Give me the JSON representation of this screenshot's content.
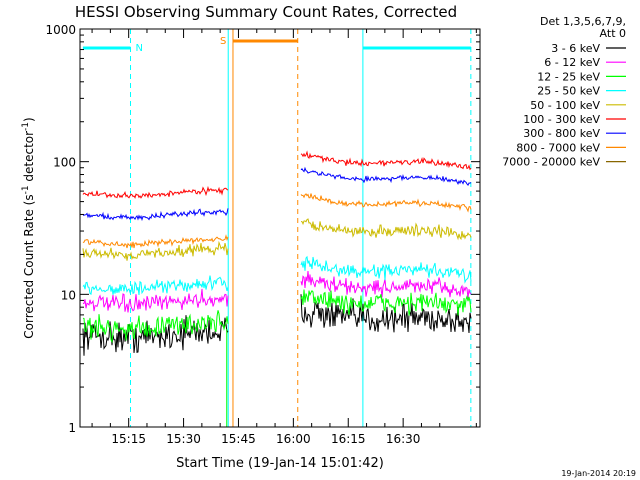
{
  "chart_data": {
    "type": "line",
    "title": "HESSI Observing Summary Count Rates, Corrected",
    "xlabel": "Start Time (19-Jan-14 15:01:42)",
    "ylabel": "Corrected Count Rate (s⁻¹ detector⁻¹)",
    "ylabel_parts": {
      "main": "Corrected Count Rate (s",
      "exp1": "-1",
      "mid": " detector",
      "exp2": "-1",
      "end": ")"
    },
    "x_units": "minutes of day",
    "xlim": [
      901.7,
      1011
    ],
    "ylim": [
      1,
      1000
    ],
    "y_scale": "log",
    "x_ticks": [
      {
        "v": 915,
        "label": "15:15"
      },
      {
        "v": 930,
        "label": "15:30"
      },
      {
        "v": 945,
        "label": "15:45"
      },
      {
        "v": 960,
        "label": "16:00"
      },
      {
        "v": 975,
        "label": "16:15"
      },
      {
        "v": 990,
        "label": "16:30"
      }
    ],
    "y_ticks": [
      {
        "v": 1,
        "label": "1"
      },
      {
        "v": 10,
        "label": "10"
      },
      {
        "v": 100,
        "label": "100"
      },
      {
        "v": 1000,
        "label": "1000"
      }
    ],
    "grid": false,
    "legend_position": "right",
    "legend_header": [
      "Det 1,3,5,6,7,9,",
      "Att 0"
    ],
    "footer_date": "19-Jan-2014 20:19",
    "series": [
      {
        "name": "3 - 6 keV",
        "color": "#000000",
        "first": 5,
        "second": 6.2,
        "noise": 0.22
      },
      {
        "name": "6 - 12 keV",
        "color": "#ff00ff",
        "first": 8.8,
        "second": 10.6,
        "noise": 0.12
      },
      {
        "name": "12 - 25 keV",
        "color": "#00ff00",
        "first": 5.8,
        "second": 8.0,
        "noise": 0.16
      },
      {
        "name": "25 - 50 keV",
        "color": "#00ffff",
        "first": 11.5,
        "second": 14,
        "noise": 0.1
      },
      {
        "name": "50 - 100 keV",
        "color": "#ccbb00",
        "first": 21,
        "second": 28,
        "noise": 0.08
      },
      {
        "name": "100 - 300 keV",
        "color": "#ff0000",
        "first": 58,
        "second": 92,
        "noise": 0.04
      },
      {
        "name": "300 - 800 keV",
        "color": "#0000ff",
        "first": 40,
        "second": 70,
        "noise": 0.04
      },
      {
        "name": "800 - 7000 keV",
        "color": "#ff8800",
        "first": 25,
        "second": 45,
        "noise": 0.04
      },
      {
        "name": "7000 - 20000 keV",
        "color": "#886600",
        "first": null,
        "second": null,
        "noise": 0
      }
    ],
    "intervals": {
      "data_first": [
        902.5,
        942.2
      ],
      "data_second": [
        962.2,
        1008.5
      ],
      "night_bars": [
        {
          "label": "N",
          "x1": 902.5,
          "x2": 915.5,
          "color": "#00ffff"
        },
        {
          "label": "",
          "x1": 979,
          "x2": 1008.5,
          "color": "#00ffff"
        }
      ],
      "saa_bar": {
        "label": "S",
        "x1": 943.5,
        "x2": 961.2,
        "color": "#ff8800"
      },
      "solid_lines": [
        {
          "x": 942.2,
          "color": "#00ffff"
        },
        {
          "x": 943.5,
          "color": "#ff8800"
        },
        {
          "x": 979,
          "color": "#00ffff"
        }
      ],
      "dashed_lines": [
        {
          "x": 915.5,
          "color": "#00ffff"
        },
        {
          "x": 961.2,
          "color": "#ff8800"
        },
        {
          "x": 1008.5,
          "color": "#00ffff"
        }
      ],
      "green_spike_x": 941.8
    }
  }
}
